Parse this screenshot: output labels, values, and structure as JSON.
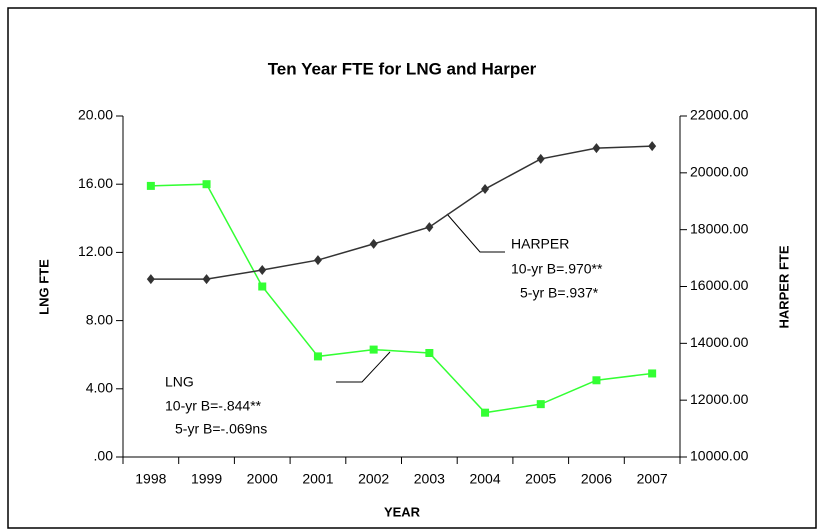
{
  "chart_data": {
    "type": "line",
    "title": "Ten Year FTE for LNG and Harper",
    "x_label": "YEAR",
    "y_label": "LNG FTE",
    "y2_label": "HARPER FTE",
    "categories": [
      "1998",
      "1999",
      "2000",
      "2001",
      "2002",
      "2003",
      "2004",
      "2005",
      "2006",
      "2007"
    ],
    "series": [
      {
        "name": "LNG",
        "color": "#33ff33",
        "marker": "square",
        "axis": "y",
        "values": [
          15.9,
          16.0,
          10.0,
          5.9,
          6.3,
          6.1,
          2.6,
          3.1,
          4.5,
          4.9
        ]
      },
      {
        "name": "HARPER",
        "color": "#333333",
        "marker": "diamond",
        "axis": "y2",
        "values": [
          16260,
          16260,
          16580,
          16930,
          17500,
          18090,
          19430,
          20490,
          20870,
          20940
        ]
      }
    ],
    "ylim": [
      0,
      20
    ],
    "yticks": [
      {
        "value": 0,
        "label": ".00"
      },
      {
        "value": 4,
        "label": "4.00"
      },
      {
        "value": 8,
        "label": "8.00"
      },
      {
        "value": 12,
        "label": "12.00"
      },
      {
        "value": 16,
        "label": "16.00"
      },
      {
        "value": 20,
        "label": "20.00"
      }
    ],
    "y2lim": [
      10000,
      22000
    ],
    "y2ticks": [
      {
        "value": 10000,
        "label": "10000.00"
      },
      {
        "value": 12000,
        "label": "12000.00"
      },
      {
        "value": 14000,
        "label": "14000.00"
      },
      {
        "value": 16000,
        "label": "16000.00"
      },
      {
        "value": 18000,
        "label": "18000.00"
      },
      {
        "value": 20000,
        "label": "20000.00"
      },
      {
        "value": 22000,
        "label": "22000.00"
      }
    ],
    "grid": false,
    "annotations": [
      {
        "series": "HARPER",
        "lines": [
          "HARPER",
          "10-yr B=.970**",
          "5-yr B=.937*"
        ]
      },
      {
        "series": "LNG",
        "lines": [
          "LNG",
          "10-yr B=-.844**",
          "5-yr B=-.069ns"
        ]
      }
    ]
  }
}
